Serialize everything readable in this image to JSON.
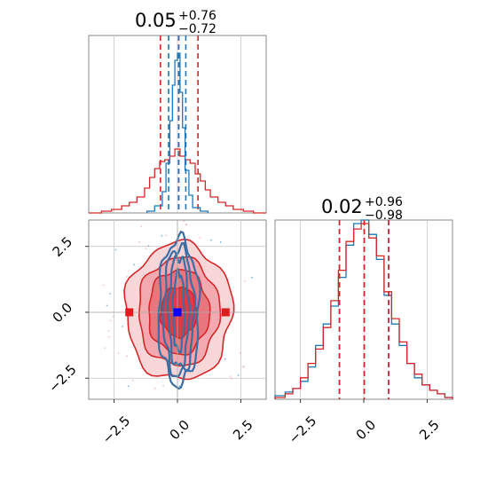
{
  "chart_data": [
    {
      "panel": "top-left",
      "type": "histogram",
      "title": {
        "value": "0.05",
        "plus": "+0.76",
        "minus": "−0.72"
      },
      "xlim": [
        -3.5,
        3.5
      ],
      "ylim": [
        0,
        1.0
      ],
      "grid": true,
      "xtick_values": [
        -2.5,
        0.0,
        2.5
      ],
      "series": [
        {
          "color": "#1f77b4",
          "bin_edges": [
            -1.2,
            -0.9,
            -0.6,
            -0.45,
            -0.3,
            -0.2,
            -0.1,
            0.0,
            0.1,
            0.2,
            0.3,
            0.45,
            0.6,
            0.9,
            1.2
          ],
          "counts": [
            0.01,
            0.04,
            0.12,
            0.28,
            0.52,
            0.72,
            0.86,
            0.9,
            0.68,
            0.48,
            0.24,
            0.1,
            0.03,
            0.01
          ],
          "vlines": [
            -0.35,
            0.05,
            0.33
          ]
        },
        {
          "color": "#d62728",
          "bin_edges": [
            -3.5,
            -3.0,
            -2.6,
            -2.2,
            -1.9,
            -1.6,
            -1.3,
            -1.1,
            -0.9,
            -0.7,
            -0.5,
            -0.3,
            -0.1,
            0.1,
            0.3,
            0.5,
            0.7,
            0.9,
            1.1,
            1.3,
            1.6,
            1.9,
            2.2,
            2.6,
            3.0,
            3.5
          ],
          "counts": [
            0.0,
            0.01,
            0.02,
            0.04,
            0.06,
            0.09,
            0.14,
            0.2,
            0.25,
            0.29,
            0.3,
            0.32,
            0.36,
            0.32,
            0.3,
            0.28,
            0.22,
            0.18,
            0.13,
            0.09,
            0.06,
            0.04,
            0.02,
            0.01,
            0.0
          ],
          "vlines": [
            -0.67,
            0.05,
            0.81
          ]
        }
      ]
    },
    {
      "panel": "bottom-right",
      "type": "histogram",
      "title": {
        "value": "0.02",
        "plus": "+0.96",
        "minus": "−0.98"
      },
      "xlim": [
        -3.5,
        3.5
      ],
      "ylim": [
        0,
        1.0
      ],
      "grid": true,
      "xtick_values": [
        -2.5,
        0.0,
        2.5
      ],
      "xtick_labels": [
        "−2.5",
        "0.0",
        "2.5"
      ],
      "series": [
        {
          "color": "#1f77b4",
          "bin_edges": [
            -3.5,
            -3.1,
            -2.8,
            -2.5,
            -2.2,
            -1.9,
            -1.6,
            -1.3,
            -1.0,
            -0.7,
            -0.4,
            -0.1,
            0.2,
            0.5,
            0.8,
            1.1,
            1.4,
            1.7,
            2.0,
            2.3,
            2.6,
            2.9,
            3.2,
            3.5
          ],
          "counts": [
            0.02,
            0.04,
            0.06,
            0.1,
            0.18,
            0.3,
            0.42,
            0.52,
            0.68,
            0.86,
            0.98,
            1.0,
            0.92,
            0.78,
            0.58,
            0.42,
            0.3,
            0.2,
            0.12,
            0.08,
            0.05,
            0.03,
            0.01
          ],
          "vlines": [
            -0.96,
            0.02,
            0.98
          ]
        },
        {
          "color": "#d62728",
          "bin_edges": [
            -3.5,
            -3.1,
            -2.8,
            -2.5,
            -2.2,
            -1.9,
            -1.6,
            -1.3,
            -1.0,
            -0.7,
            -0.4,
            -0.1,
            0.2,
            0.5,
            0.8,
            1.1,
            1.4,
            1.7,
            2.0,
            2.3,
            2.6,
            2.9,
            3.2,
            3.5
          ],
          "counts": [
            0.01,
            0.03,
            0.06,
            0.12,
            0.2,
            0.28,
            0.4,
            0.55,
            0.72,
            0.88,
            0.95,
            0.98,
            0.9,
            0.8,
            0.6,
            0.45,
            0.32,
            0.2,
            0.14,
            0.08,
            0.05,
            0.03,
            0.01
          ],
          "vlines": [
            -0.96,
            0.02,
            0.98
          ]
        }
      ]
    },
    {
      "panel": "bottom-left",
      "type": "contour",
      "xlim": [
        -3.5,
        3.5
      ],
      "ylim": [
        -3.3,
        3.5
      ],
      "grid": true,
      "xtick_values": [
        -2.5,
        0.0,
        2.5
      ],
      "xtick_labels": [
        "−2.5",
        "0.0",
        "2.5"
      ],
      "ytick_values": [
        -2.5,
        0.0,
        2.5
      ],
      "ytick_labels": [
        "−2.5",
        "0.0",
        "2.5"
      ],
      "red_contours": {
        "center": [
          0.05,
          0.02
        ],
        "rx": [
          0.72,
          1.2,
          1.6,
          2.1
        ],
        "ry": [
          0.95,
          1.6,
          2.05,
          2.6
        ],
        "fills": [
          "#dd3b45",
          "#e8767e",
          "#f2aab0",
          "#f9d7d9"
        ],
        "outline": "#d62728"
      },
      "blue_contours": {
        "center": [
          0.05,
          0.02
        ],
        "rx": [
          0.22,
          0.4,
          0.6,
          0.8
        ],
        "ry": [
          1.5,
          2.1,
          2.45,
          2.75
        ],
        "outline": "#3a6ea5"
      },
      "markers": [
        {
          "x": -1.9,
          "y": 0.0,
          "color": "#e31a1c"
        },
        {
          "x": 1.9,
          "y": 0.0,
          "color": "#e31a1c"
        },
        {
          "x": 0.0,
          "y": 0.0,
          "color": "#0000ff"
        }
      ],
      "guide_lines": {
        "x": 0.0,
        "y": 0.0
      }
    }
  ]
}
